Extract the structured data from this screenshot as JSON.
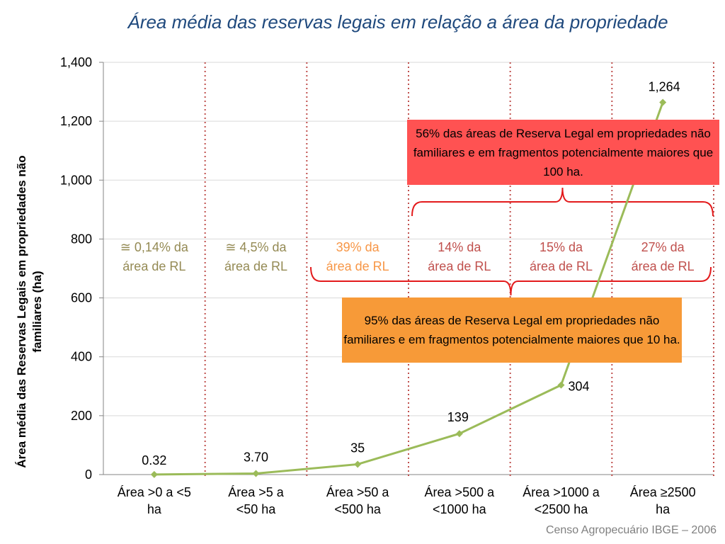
{
  "title": "Área média das reservas legais em relação a área da propriedade",
  "source": "Censo Agropecuário IBGE – 2006",
  "chart_data": {
    "type": "line",
    "title": "Área média das reservas legais em relação a área da propriedade",
    "xlabel": "",
    "ylabel": "Área média das Reservas Legais em propriedades não familiares (ha)",
    "ylim": [
      0,
      1400
    ],
    "yticks": [
      "0",
      "200",
      "400",
      "600",
      "800",
      "1,000",
      "1,200",
      "1,400"
    ],
    "categories": [
      [
        "Área >0 a <5",
        "ha"
      ],
      [
        "Área >5 a",
        "<50 ha"
      ],
      [
        "Área >50 a",
        "<500 ha"
      ],
      [
        "Área >500 a",
        "<1000 ha"
      ],
      [
        "Área >1000 a",
        "<2500 ha"
      ],
      [
        "Área ≥2500",
        "ha"
      ]
    ],
    "values": [
      0.32,
      3.7,
      35,
      139,
      304,
      1264
    ],
    "data_labels": [
      "0.32",
      "3.70",
      "35",
      "139",
      "304",
      "1,264"
    ],
    "line_color": "#9bbb59",
    "grid": true,
    "band_labels": [
      {
        "lines": [
          "≅ 0,14% da",
          "área de RL"
        ],
        "color": "#948a54"
      },
      {
        "lines": [
          "≅ 4,5% da",
          "área de RL"
        ],
        "color": "#948a54"
      },
      {
        "lines": [
          "39% da",
          "área de RL"
        ],
        "color": "#f79646"
      },
      {
        "lines": [
          "14% da",
          "área de RL"
        ],
        "color": "#c0504d"
      },
      {
        "lines": [
          "15% da",
          "área de RL"
        ],
        "color": "#c0504d"
      },
      {
        "lines": [
          "27% da",
          "área de RL"
        ],
        "color": "#c0504d"
      }
    ],
    "annotations": {
      "red_box": "56% das áreas de Reserva Legal em propriedades não familiares e em fragmentos potencialmente maiores que 100 ha.",
      "orange_box": "95% das áreas de Reserva Legal em propriedades não familiares e em fragmentos potencialmente maiores que 10 ha."
    },
    "colors": {
      "red_box": "#ff5252",
      "orange_box": "#f79a38",
      "brace": "#e31a1c",
      "divider": "#c0504d"
    }
  }
}
